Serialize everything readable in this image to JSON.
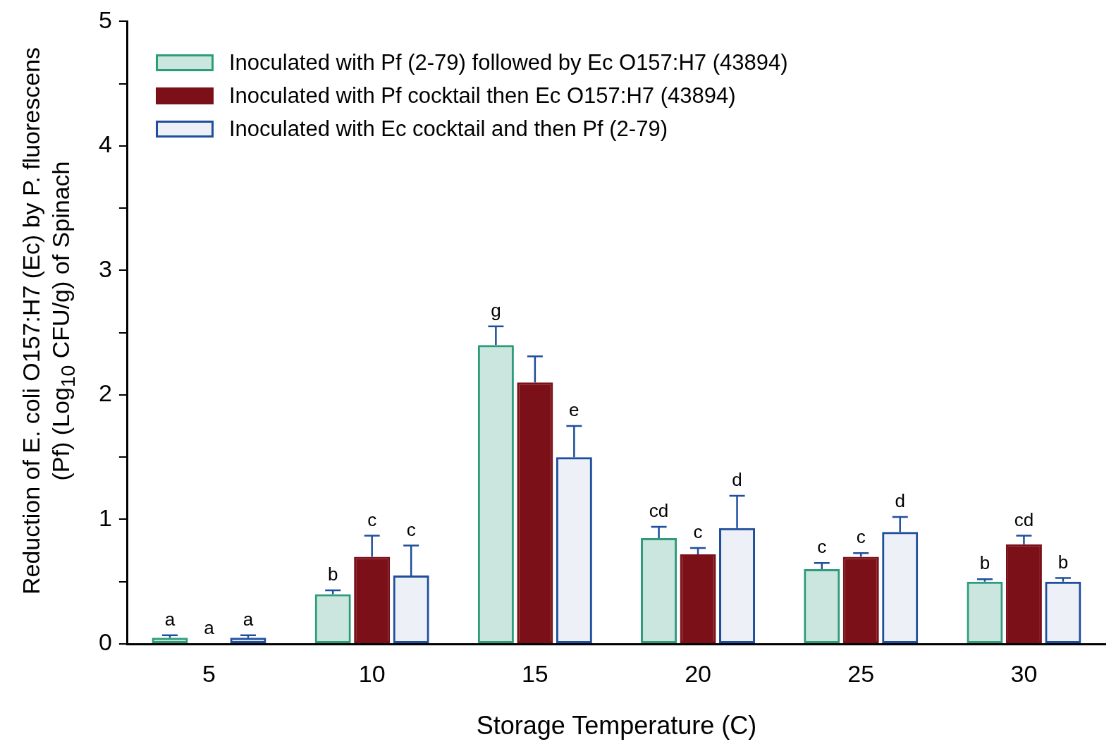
{
  "chart_data": {
    "type": "bar",
    "xlabel": "Storage Temperature (C)",
    "ylabel": "Reduction of E. coli O157:H7 (Ec) by P. fluorescens (Pf) (Log$_{10}$ CFU/g) of Spinach",
    "categories": [
      "5",
      "10",
      "15",
      "20",
      "25",
      "30"
    ],
    "series": [
      {
        "name": "Inoculated with Pf (2-79) followed by Ec O157:H7 (43894)",
        "color": "#2e9c7a",
        "values": [
          0.05,
          0.4,
          2.4,
          0.85,
          0.6,
          0.5
        ],
        "errors": [
          [
            0.05,
            0.07
          ],
          [
            0.4,
            0.43
          ],
          [
            2.4,
            2.55
          ],
          [
            0.85,
            0.94
          ],
          [
            0.6,
            0.65
          ],
          [
            0.5,
            0.52
          ]
        ],
        "value_labels": [
          "a",
          "b",
          "g",
          "cd",
          "c",
          "b"
        ]
      },
      {
        "name": "Inoculated with Pf cocktail then Ec O157:H7 (43894)",
        "color": "#7b1018",
        "values": [
          0,
          0.7,
          2.1,
          0.72,
          0.7,
          0.8
        ],
        "errors": [
          null,
          [
            0.7,
            0.87
          ],
          [
            2.1,
            2.31
          ],
          [
            0.72,
            0.77
          ],
          [
            0.7,
            0.73
          ],
          [
            0.8,
            0.87
          ]
        ],
        "value_labels": [
          "a",
          "c",
          null,
          "c",
          "c",
          "cd"
        ]
      },
      {
        "name": "Inoculated with Ec cocktail and then Pf (2-79)",
        "color": "#1f4e9c",
        "values": [
          0.05,
          0.55,
          1.5,
          0.93,
          0.9,
          0.5
        ],
        "errors": [
          [
            0.05,
            0.07
          ],
          [
            0.55,
            0.79
          ],
          [
            1.5,
            1.75
          ],
          [
            0.93,
            1.19
          ],
          [
            0.9,
            1.02
          ],
          [
            0.5,
            0.53
          ]
        ],
        "value_labels": [
          "a",
          "c",
          "e",
          "d",
          "d",
          "b"
        ]
      }
    ],
    "ylim": [
      0,
      5
    ],
    "yticks": [
      0,
      {
        "value": 0.5,
        "label": null
      },
      1,
      {
        "value": 1.5,
        "label": null
      },
      2,
      {
        "value": 2.5,
        "label": null
      },
      3,
      {
        "value": 3.5,
        "label": null
      },
      4,
      {
        "value": 4.5,
        "label": null
      },
      5
    ],
    "grid": false,
    "legend": "top left"
  }
}
